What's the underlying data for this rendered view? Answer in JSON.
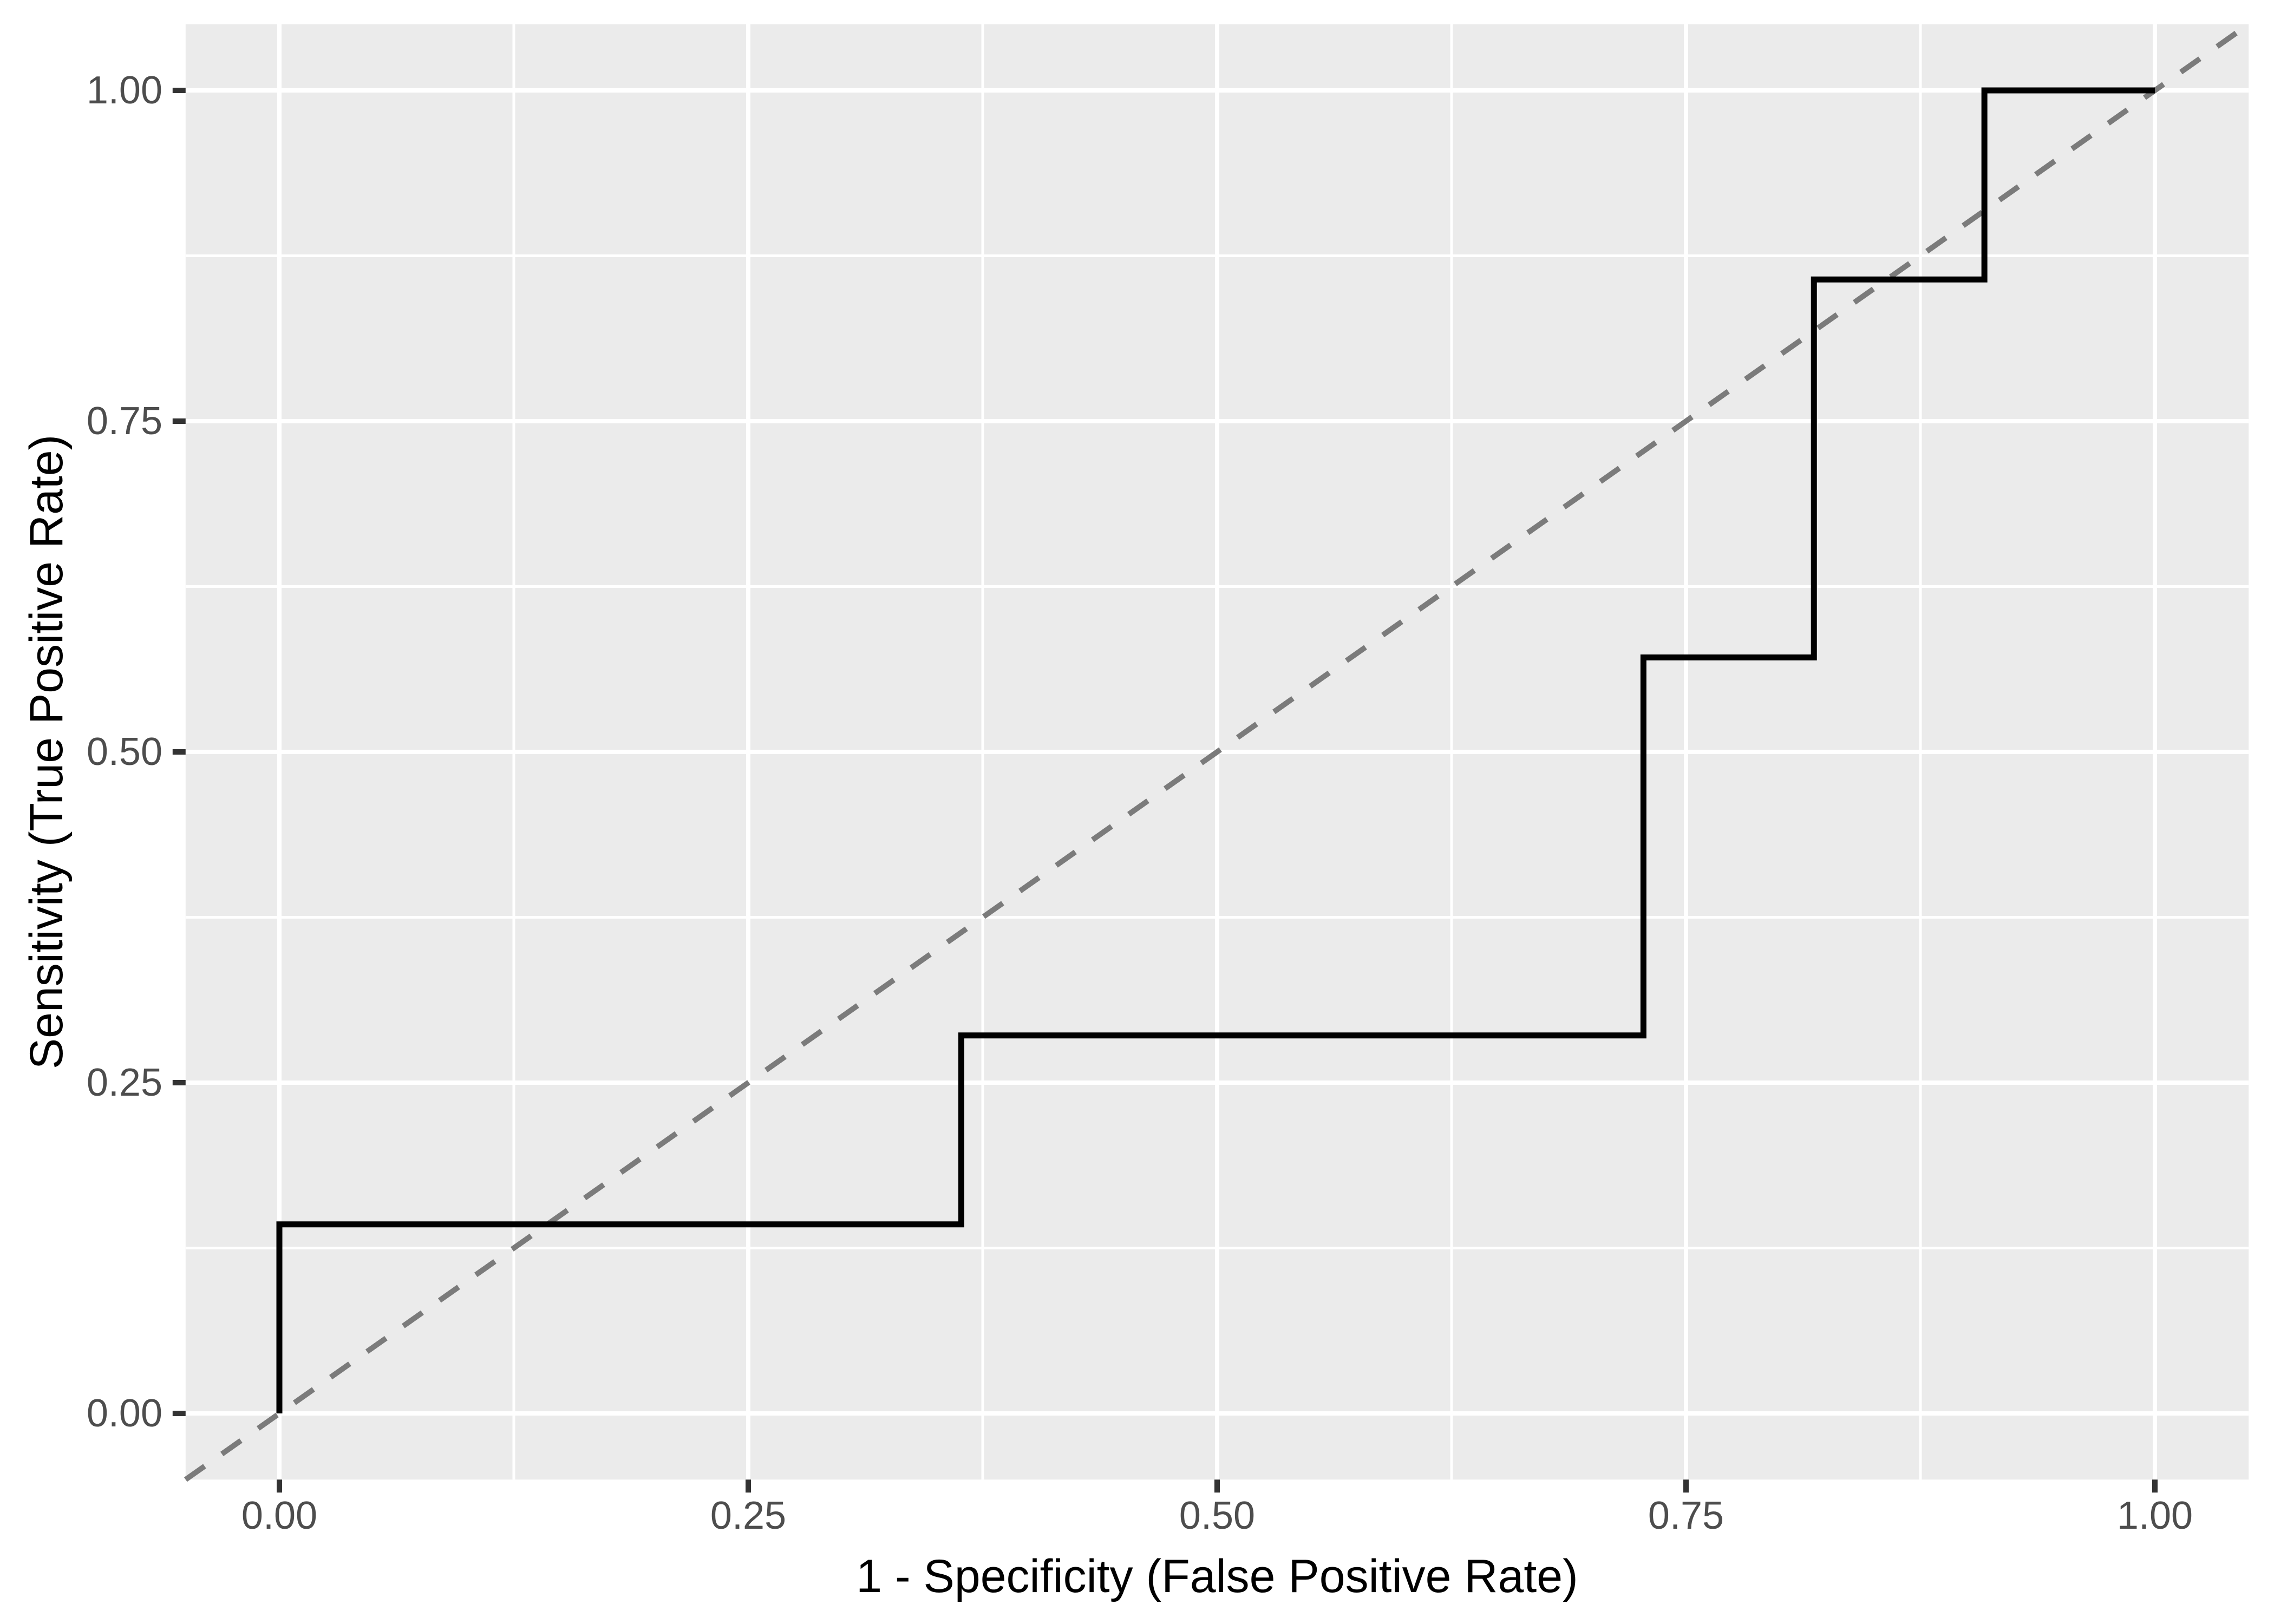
{
  "page": {
    "background_color": "#FFFFFF"
  },
  "chart_data": {
    "type": "line",
    "subtype": "roc-step-curve",
    "title": "",
    "xlabel": "1 - Specificity (False Positive Rate)",
    "ylabel": "Sensitivity (True Positive Rate)",
    "xlim": [
      -0.05,
      1.05
    ],
    "ylim": [
      -0.05,
      1.05
    ],
    "grid": "major and minor white gridlines on grey panel",
    "legend_position": "none",
    "colors": {
      "panel_background": "#EBEBEB",
      "gridline": "#FFFFFF",
      "axis_text": "#4D4D4D",
      "axis_title": "#000000",
      "tick_mark": "#333333",
      "roc_line": "#000000",
      "diagonal_line": "#7B7B7B"
    },
    "x_ticks": {
      "values": [
        0,
        0.25,
        0.5,
        0.75,
        1
      ],
      "labels": [
        "0.00",
        "0.25",
        "0.50",
        "0.75",
        "1.00"
      ]
    },
    "y_ticks": {
      "values": [
        0,
        0.25,
        0.5,
        0.75,
        1
      ],
      "labels": [
        "0.00",
        "0.25",
        "0.50",
        "0.75",
        "1.00"
      ]
    },
    "x_minor_ticks": [
      0.125,
      0.375,
      0.625,
      0.875
    ],
    "y_minor_ticks": [
      0.125,
      0.375,
      0.625,
      0.875
    ],
    "series": [
      {
        "name": "chance-diagonal",
        "type": "line",
        "color": "#7B7B7B",
        "stroke_width": 10,
        "dash": [
          43,
          39
        ],
        "x": [
          -0.05,
          1.05
        ],
        "y": [
          -0.05,
          1.05
        ]
      },
      {
        "name": "roc-curve",
        "type": "step",
        "color": "#000000",
        "stroke_width": 11,
        "dash": null,
        "x": [
          0,
          0,
          0.3636,
          0.3636,
          0.7273,
          0.7273,
          0.8182,
          0.8182,
          0.9091,
          0.9091,
          1
        ],
        "y": [
          0,
          0.1429,
          0.1429,
          0.2857,
          0.2857,
          0.5714,
          0.5714,
          0.8571,
          0.8571,
          1,
          1
        ]
      }
    ]
  }
}
